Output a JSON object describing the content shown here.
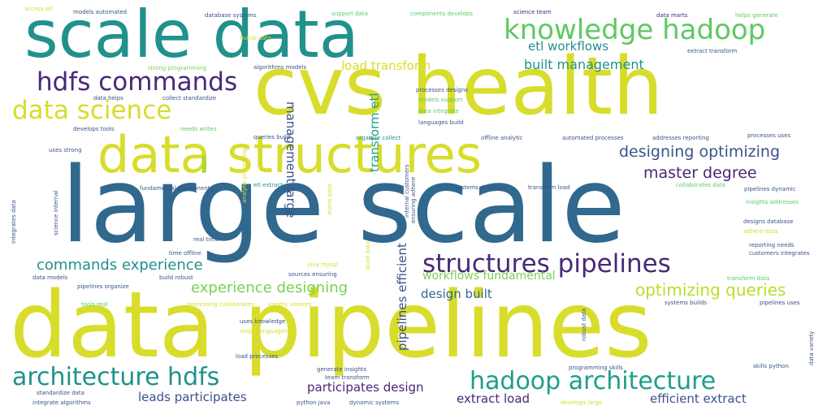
{
  "colors": {
    "yellow": "#d7dd2a",
    "yellow_green": "#b8de29",
    "green": "#7ad151",
    "light_green": "#5ec962",
    "teal": "#21918c",
    "teal_dark": "#1f9e89",
    "blue": "#31688e",
    "indigo": "#3b528b",
    "purple": "#482878",
    "dark_purple": "#440154"
  },
  "words": [
    {
      "text": "large scale",
      "color": "blue"
    },
    {
      "text": "data pipelines",
      "color": "yellow"
    },
    {
      "text": "cvs health",
      "color": "yellow"
    },
    {
      "text": "scale data",
      "color": "teal"
    },
    {
      "text": "data structures",
      "color": "yellow"
    },
    {
      "text": "knowledge hadoop",
      "color": "light_green"
    },
    {
      "text": "hdfs commands",
      "color": "purple"
    },
    {
      "text": "data science",
      "color": "yellow"
    },
    {
      "text": "structures pipelines",
      "color": "purple"
    },
    {
      "text": "architecture hdfs",
      "color": "teal"
    },
    {
      "text": "hadoop architecture",
      "color": "teal_dark"
    },
    {
      "text": "designing optimizing",
      "color": "indigo"
    },
    {
      "text": "master degree",
      "color": "purple"
    },
    {
      "text": "optimizing queries",
      "color": "yellow_green"
    },
    {
      "text": "experience designing",
      "color": "green"
    },
    {
      "text": "commands experience",
      "color": "teal"
    },
    {
      "text": "built management",
      "color": "teal"
    },
    {
      "text": "etl workflows",
      "color": "teal"
    },
    {
      "text": "load transform",
      "color": "yellow"
    },
    {
      "text": "management large",
      "color": "indigo"
    },
    {
      "text": "transform etl",
      "color": "teal_dark"
    },
    {
      "text": "pipelines efficient",
      "color": "indigo"
    },
    {
      "text": "workflows fundamental",
      "color": "green"
    },
    {
      "text": "design built",
      "color": "blue"
    },
    {
      "text": "leads participates",
      "color": "indigo"
    },
    {
      "text": "participates design",
      "color": "purple"
    },
    {
      "text": "extract load",
      "color": "purple"
    },
    {
      "text": "efficient extract",
      "color": "indigo"
    },
    {
      "text": "access etl",
      "color": "yellow"
    },
    {
      "text": "models automated",
      "color": "indigo"
    },
    {
      "text": "database systems",
      "color": "indigo"
    },
    {
      "text": "support data",
      "color": "light_green"
    },
    {
      "text": "components develops",
      "color": "light_green"
    },
    {
      "text": "science team",
      "color": "purple"
    },
    {
      "text": "data marts",
      "color": "purple"
    },
    {
      "text": "helps generate",
      "color": "light_green"
    },
    {
      "text": "builds data",
      "color": "yellow"
    },
    {
      "text": "strong programming",
      "color": "green"
    },
    {
      "text": "algorithms models",
      "color": "indigo"
    },
    {
      "text": "extract transform",
      "color": "indigo"
    },
    {
      "text": "processes designs",
      "color": "indigo"
    },
    {
      "text": "models support",
      "color": "light_green"
    },
    {
      "text": "data integrate",
      "color": "light_green"
    },
    {
      "text": "languages build",
      "color": "indigo"
    },
    {
      "text": "data helps",
      "color": "indigo"
    },
    {
      "text": "collect standardize",
      "color": "indigo"
    },
    {
      "text": "develops tools",
      "color": "indigo"
    },
    {
      "text": "needs writes",
      "color": "light_green"
    },
    {
      "text": "queries build",
      "color": "indigo"
    },
    {
      "text": "organize collect",
      "color": "teal"
    },
    {
      "text": "offline analytic",
      "color": "indigo"
    },
    {
      "text": "automated processes",
      "color": "indigo"
    },
    {
      "text": "addresses reporting",
      "color": "indigo"
    },
    {
      "text": "processes uses",
      "color": "indigo"
    },
    {
      "text": "uses strong",
      "color": "indigo"
    },
    {
      "text": "fundamental components",
      "color": "indigo"
    },
    {
      "text": "etl extract",
      "color": "teal"
    },
    {
      "text": "systems develops",
      "color": "indigo"
    },
    {
      "text": "transform load",
      "color": "indigo"
    },
    {
      "text": "collaborates data",
      "color": "light_green"
    },
    {
      "text": "pipelines dynamic",
      "color": "indigo"
    },
    {
      "text": "insights addresses",
      "color": "light_green"
    },
    {
      "text": "designs database",
      "color": "indigo"
    },
    {
      "text": "adhere data",
      "color": "yellow"
    },
    {
      "text": "real time",
      "color": "indigo"
    },
    {
      "text": "time offline",
      "color": "indigo"
    },
    {
      "text": "build robust",
      "color": "indigo"
    },
    {
      "text": "java mysql",
      "color": "yellow"
    },
    {
      "text": "sources ensuring",
      "color": "indigo"
    },
    {
      "text": "reporting needs",
      "color": "indigo"
    },
    {
      "text": "customers integrates",
      "color": "indigo"
    },
    {
      "text": "transform data",
      "color": "light_green"
    },
    {
      "text": "data models",
      "color": "indigo"
    },
    {
      "text": "pipelines organize",
      "color": "indigo"
    },
    {
      "text": "tools real",
      "color": "light_green"
    },
    {
      "text": "processing collaborates",
      "color": "yellow"
    },
    {
      "text": "variety sources",
      "color": "yellow"
    },
    {
      "text": "systems builds",
      "color": "indigo"
    },
    {
      "text": "pipelines uses",
      "color": "indigo"
    },
    {
      "text": "uses knowledge",
      "color": "indigo"
    },
    {
      "text": "major languages",
      "color": "yellow"
    },
    {
      "text": "load processes",
      "color": "indigo"
    },
    {
      "text": "generate insights",
      "color": "indigo"
    },
    {
      "text": "team transform",
      "color": "indigo"
    },
    {
      "text": "programming skills",
      "color": "indigo"
    },
    {
      "text": "skills python",
      "color": "indigo"
    },
    {
      "text": "standardize data",
      "color": "indigo"
    },
    {
      "text": "integrate algorithms",
      "color": "indigo"
    },
    {
      "text": "python java",
      "color": "indigo"
    },
    {
      "text": "dynamic systems",
      "color": "indigo"
    },
    {
      "text": "develops large",
      "color": "yellow"
    },
    {
      "text": "integrates data",
      "color": "indigo"
    },
    {
      "text": "science internal",
      "color": "indigo"
    },
    {
      "text": "analytic processing",
      "color": "yellow"
    },
    {
      "text": "marts data",
      "color": "yellow"
    },
    {
      "text": "internal customers",
      "color": "indigo"
    },
    {
      "text": "ensuring adhere",
      "color": "indigo"
    },
    {
      "text": "build data",
      "color": "yellow"
    },
    {
      "text": "robust data",
      "color": "indigo"
    },
    {
      "text": "data variety",
      "color": "indigo"
    },
    {
      "text": "writes",
      "color": "light_green"
    }
  ]
}
